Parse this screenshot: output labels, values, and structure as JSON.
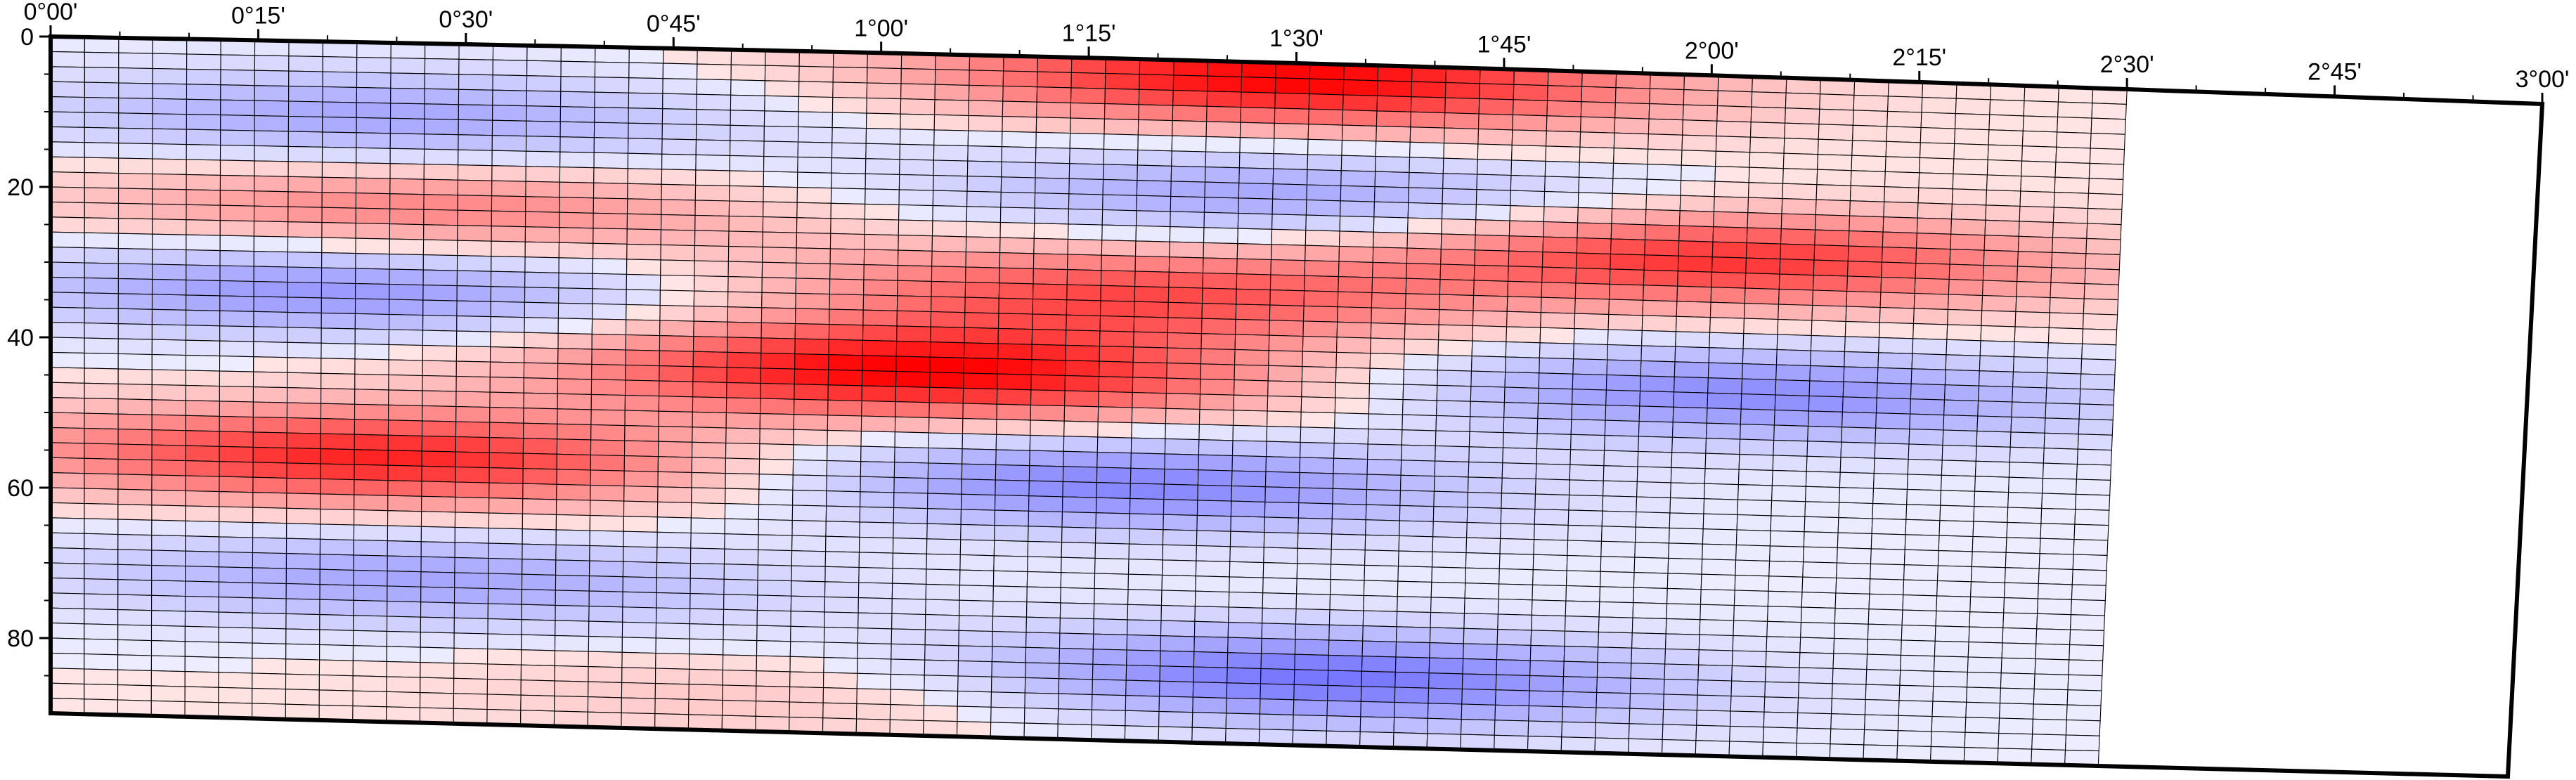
{
  "chart_data": {
    "type": "heatmap",
    "title": "",
    "xlabel": "",
    "ylabel": "",
    "projection": "cylindrical-equal-distance-rotated",
    "x_tick_labels": [
      "0°00'",
      "0°15'",
      "0°30'",
      "0°45'",
      "1°00'",
      "1°15'",
      "1°30'",
      "1°45'",
      "2°00'",
      "2°15'",
      "2°30'",
      "2°45'",
      "3°00'"
    ],
    "x_ticks_deg": [
      0,
      0.25,
      0.5,
      0.75,
      1.0,
      1.25,
      1.5,
      1.75,
      2.0,
      2.25,
      2.5,
      2.75,
      3.0
    ],
    "y_tick_labels": [
      "0",
      "20",
      "40",
      "60",
      "80"
    ],
    "y_ticks": [
      0,
      20,
      40,
      60,
      80
    ],
    "xlim": [
      0,
      3.0
    ],
    "ylim": [
      0,
      90
    ],
    "y_direction": "downward",
    "grid": true,
    "colormap": "polar (blue-white-red)",
    "colors": {
      "negative": "#4d4dff",
      "zero": "#ffffff",
      "positive": "#ff0000",
      "grid_line": "#000000",
      "frame": "#000000"
    },
    "grid_columns": 61,
    "grid_rows": 45,
    "data_extent_deg": [
      0,
      2.5
    ],
    "value_range": [
      -1,
      1
    ],
    "structure": [
      {
        "sign": "positive",
        "x_center_deg": 1.5,
        "y_center": 2,
        "amplitude": 1.0
      },
      {
        "sign": "negative",
        "x_center_deg": 0.4,
        "y_center": 10,
        "amplitude": 0.45
      },
      {
        "sign": "negative",
        "x_center_deg": 1.5,
        "y_center": 18,
        "amplitude": 0.5
      },
      {
        "sign": "positive",
        "x_center_deg": 0.45,
        "y_center": 22,
        "amplitude": 0.45
      },
      {
        "sign": "positive",
        "x_center_deg": 2.0,
        "y_center": 24,
        "amplitude": 0.8
      },
      {
        "sign": "positive",
        "x_center_deg": 1.3,
        "y_center": 31,
        "amplitude": 0.65
      },
      {
        "sign": "negative",
        "x_center_deg": 0.35,
        "y_center": 33,
        "amplitude": 0.55
      },
      {
        "sign": "positive",
        "x_center_deg": 1.05,
        "y_center": 42,
        "amplitude": 1.0
      },
      {
        "sign": "negative",
        "x_center_deg": 2.05,
        "y_center": 42,
        "amplitude": 0.6
      },
      {
        "sign": "positive",
        "x_center_deg": 0.4,
        "y_center": 55,
        "amplitude": 0.85
      },
      {
        "sign": "negative",
        "x_center_deg": 1.3,
        "y_center": 56,
        "amplitude": 0.65
      },
      {
        "sign": "negative",
        "x_center_deg": 0.45,
        "y_center": 71,
        "amplitude": 0.45
      },
      {
        "sign": "negative",
        "x_center_deg": 1.55,
        "y_center": 81,
        "amplitude": 0.75
      },
      {
        "sign": "positive",
        "x_center_deg": 0.9,
        "y_center": 85,
        "amplitude": 0.15
      }
    ]
  }
}
